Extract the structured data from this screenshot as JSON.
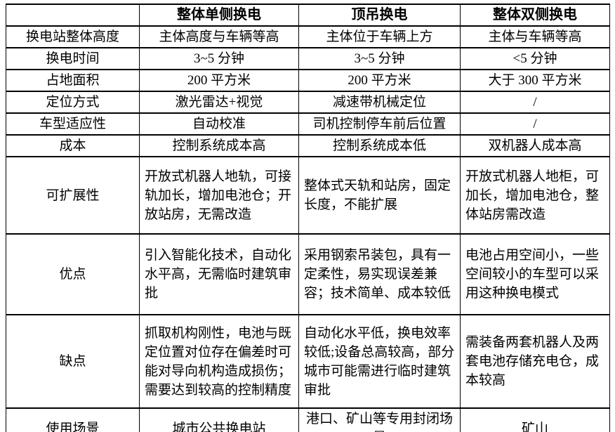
{
  "colors": {
    "border": "#000000",
    "text": "#000000",
    "background": "#ffffff"
  },
  "table": {
    "columns": {
      "corner": "",
      "col2": "整体单侧换电",
      "col3": "顶吊换电",
      "col4": "整体双侧换电"
    },
    "rows": [
      {
        "label": "换电站整体高度",
        "cells": [
          "主体高度与车辆等高",
          "主体位于车辆上方",
          "主体与车辆等高"
        ]
      },
      {
        "label": "换电时间",
        "cells": [
          "3~5 分钟",
          "3~5 分钟",
          "<5 分钟"
        ]
      },
      {
        "label": "占地面积",
        "cells": [
          "200 平方米",
          "200 平方米",
          "大于 300 平方米"
        ]
      },
      {
        "label": "定位方式",
        "cells": [
          "激光雷达+视觉",
          "减速带机械定位",
          "/"
        ]
      },
      {
        "label": "车型适应性",
        "cells": [
          "自动校准",
          "司机控制停车前后位置",
          "/"
        ]
      },
      {
        "label": "成本",
        "cells": [
          "控制系统成本高",
          "控制系统成本低",
          "双机器人成本高"
        ]
      },
      {
        "label": "可扩展性",
        "cells": [
          "开放式机器人地轨，可接轨加长，增加电池仓；开放站房，无需改造",
          "整体式天轨和站房，固定长度，不能扩展",
          "开放式机器人地柜，可加长，增加电池仓，整体站房需改造"
        ]
      },
      {
        "label": "优点",
        "cells": [
          "引入智能化技术，自动化水平高，无需临时建筑审批",
          "采用钢索吊装包，具有一定柔性，易实现误差兼容；技术简单、成本较低",
          "电池占用空间小，一些空间较小的车型可以采用这种换电模式"
        ]
      },
      {
        "label": "缺点",
        "cells": [
          "抓取机构刚性，电池与既定位置对位存在偏差时可能对导向机构造成损伤；需要达到较高的控制精度",
          "自动化水平低，换电效率较低;设备总高较高，部分城市可能需进行临时建筑审批",
          "需装备两套机器人及两套电池存储充电仓，成本较高"
        ]
      },
      {
        "label": "使用场景",
        "cells": [
          "城市公共换电站",
          "港口、矿山等专用封闭场景",
          "矿山"
        ]
      }
    ]
  }
}
